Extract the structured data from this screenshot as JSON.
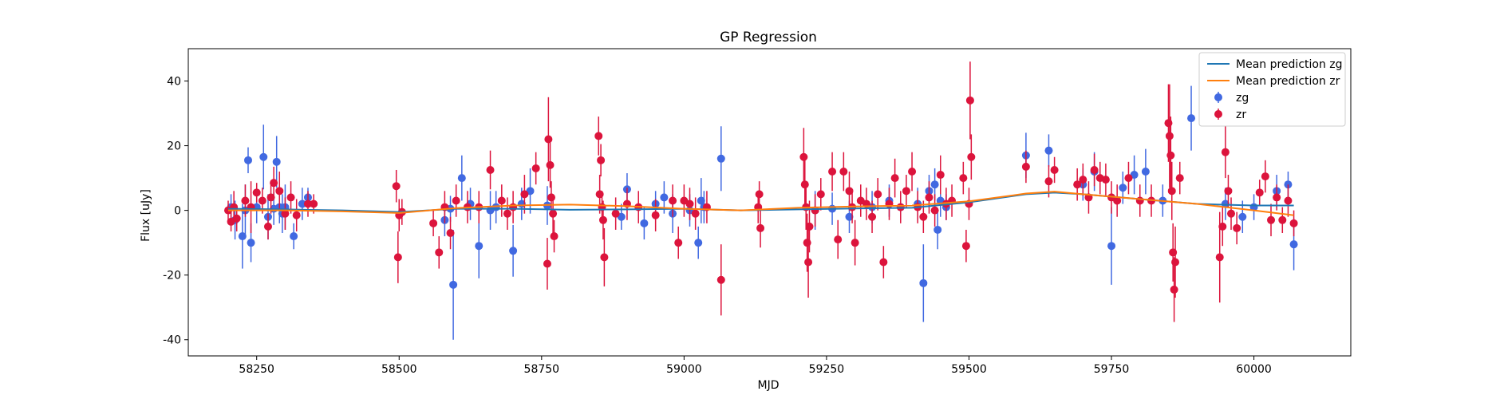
{
  "chart_data": {
    "type": "scatter",
    "title": "GP Regression",
    "xlabel": "MJD",
    "ylabel": "Flux [uJy]",
    "xlim": [
      58130,
      60170
    ],
    "ylim": [
      -45,
      50
    ],
    "xticks": [
      58250,
      58500,
      58750,
      59000,
      59250,
      59500,
      59750,
      60000
    ],
    "yticks": [
      -40,
      -20,
      0,
      20,
      40
    ],
    "legend_position": "top-right",
    "colors": {
      "zg_line": "#1f77b4",
      "zr_line": "#ff7f0e",
      "zg_points": "#4169e1",
      "zr_points": "#dc143c"
    },
    "series": [
      {
        "name": "Mean prediction zg",
        "kind": "line",
        "x": [
          58200,
          58300,
          58400,
          58500,
          58600,
          58700,
          58800,
          58900,
          59000,
          59100,
          59200,
          59300,
          59400,
          59500,
          59600,
          59650,
          59700,
          59800,
          59900,
          60000,
          60070
        ],
        "y": [
          0.5,
          0.3,
          0.0,
          -0.5,
          0.5,
          0.5,
          0.2,
          0.3,
          0.5,
          0.0,
          0.3,
          0.6,
          0.8,
          2.5,
          5.0,
          5.5,
          5.0,
          3.5,
          2.0,
          1.5,
          1.5
        ]
      },
      {
        "name": "Mean prediction zr",
        "kind": "line",
        "x": [
          58200,
          58300,
          58400,
          58500,
          58600,
          58700,
          58800,
          58900,
          59000,
          59100,
          59200,
          59300,
          59400,
          59500,
          59600,
          59650,
          59700,
          59800,
          59900,
          60000,
          60070
        ],
        "y": [
          0.0,
          0.0,
          -0.3,
          -0.8,
          0.7,
          1.5,
          1.8,
          1.3,
          0.5,
          0.0,
          0.8,
          1.2,
          1.5,
          2.8,
          5.2,
          5.8,
          5.0,
          3.5,
          2.0,
          0.0,
          -1.5
        ]
      },
      {
        "name": "zg",
        "kind": "errorbar",
        "x": [
          58205,
          58212,
          58225,
          58230,
          58235,
          58240,
          58250,
          58262,
          58270,
          58280,
          58285,
          58290,
          58295,
          58300,
          58315,
          58330,
          58340,
          58580,
          58590,
          58595,
          58610,
          58625,
          58640,
          58660,
          58670,
          58700,
          58715,
          58730,
          58760,
          58890,
          58900,
          58930,
          58950,
          58965,
          58980,
          59010,
          59025,
          59030,
          59035,
          59065,
          59230,
          59260,
          59290,
          59330,
          59360,
          59380,
          59410,
          59420,
          59430,
          59440,
          59445,
          59450,
          59460,
          59600,
          59640,
          59700,
          59720,
          59750,
          59770,
          59790,
          59810,
          59840,
          59890,
          59950,
          59980,
          60000,
          60040,
          60060,
          60070
        ],
        "y": [
          1,
          -3,
          -8,
          0,
          15.5,
          -10,
          1,
          16.5,
          -2,
          0.5,
          15,
          1,
          -1,
          1,
          -8,
          2,
          4,
          -3,
          0.5,
          -23,
          10,
          2,
          -11,
          0,
          1,
          -12.5,
          2,
          6,
          1.5,
          -2,
          6.5,
          -4,
          2,
          4,
          -1,
          0,
          -10,
          3,
          1,
          16,
          0,
          0.5,
          -2,
          1,
          3,
          1,
          2,
          -22.5,
          6,
          8,
          -6,
          3,
          1,
          17,
          18.5,
          8,
          12,
          -11,
          7,
          11,
          12,
          3,
          28.5,
          2,
          -2,
          1,
          6,
          8,
          -10.5
        ],
        "err": [
          4,
          6,
          10,
          8,
          4,
          6,
          5,
          10,
          7,
          5,
          8,
          5,
          6,
          7,
          4,
          5,
          3,
          5,
          4,
          17,
          7,
          5,
          10,
          6,
          5,
          8,
          5,
          7,
          6,
          4,
          5,
          5,
          4,
          5,
          6,
          5,
          5,
          7,
          5,
          10,
          6,
          5,
          5,
          5,
          5,
          4,
          5,
          12,
          5,
          5,
          6,
          5,
          4,
          7,
          5,
          5,
          6,
          12,
          5,
          6,
          7,
          5,
          10,
          5,
          5,
          4,
          5,
          4,
          8
        ]
      },
      {
        "name": "zr",
        "kind": "errorbar",
        "x": [
          58200,
          58205,
          58210,
          58215,
          58230,
          58240,
          58250,
          58260,
          58270,
          58275,
          58280,
          58290,
          58300,
          58310,
          58320,
          58340,
          58350,
          58495,
          58498,
          58500,
          58505,
          58560,
          58570,
          58580,
          58590,
          58600,
          58620,
          58640,
          58660,
          58680,
          58690,
          58700,
          58720,
          58740,
          58760,
          58762,
          58765,
          58767,
          58770,
          58772,
          58850,
          58852,
          58854,
          58856,
          58858,
          58860,
          58880,
          58900,
          58920,
          58950,
          58980,
          58990,
          59000,
          59010,
          59020,
          59040,
          59065,
          59130,
          59132,
          59134,
          59210,
          59212,
          59214,
          59216,
          59218,
          59220,
          59230,
          59240,
          59260,
          59270,
          59280,
          59290,
          59295,
          59300,
          59310,
          59320,
          59330,
          59340,
          59350,
          59360,
          59370,
          59380,
          59390,
          59400,
          59410,
          59420,
          59430,
          59440,
          59450,
          59460,
          59470,
          59490,
          59495,
          59500,
          59502,
          59504,
          59600,
          59640,
          59650,
          59690,
          59700,
          59710,
          59720,
          59730,
          59740,
          59750,
          59760,
          59780,
          59800,
          59820,
          59850,
          59852,
          59854,
          59856,
          59858,
          59860,
          59862,
          59870,
          59940,
          59945,
          59950,
          59955,
          59960,
          59970,
          60010,
          60020,
          60030,
          60040,
          60050,
          60060,
          60070
        ],
        "y": [
          0,
          -3.5,
          1,
          -2.5,
          3,
          1,
          5.5,
          3,
          -5,
          4,
          8.5,
          6,
          -1,
          4,
          -1.5,
          2,
          2,
          7.5,
          -14.5,
          -1.5,
          -0.5,
          -4,
          -13,
          1,
          -7,
          3,
          1,
          1,
          12.5,
          3,
          -1,
          1,
          5,
          13,
          -16.5,
          22,
          14,
          4,
          -1,
          -8,
          23,
          5,
          15.5,
          1,
          -3,
          -14.5,
          -1,
          2,
          1,
          -1.5,
          3,
          -10,
          3,
          2,
          -1,
          1,
          -21.5,
          1,
          5,
          -5.5,
          16.5,
          8,
          1,
          -10,
          -16,
          -5,
          0,
          5,
          12,
          -9,
          12,
          6,
          1,
          -10,
          3,
          2,
          -2,
          5,
          -16,
          2,
          10,
          1,
          6,
          12,
          1,
          -2,
          4,
          0,
          11,
          2,
          3,
          10,
          -11,
          2,
          34,
          16.5,
          13.5,
          9,
          12.5,
          8,
          9.5,
          4,
          12.5,
          10,
          9.5,
          4,
          3,
          10,
          3,
          3,
          27,
          23,
          17,
          6,
          -13,
          -24.5,
          -16,
          10,
          -14.5,
          -5,
          18,
          6,
          -1,
          -5.5,
          5.5,
          10.5,
          -3,
          4,
          -3,
          3,
          -4
        ],
        "err": [
          3,
          3,
          5,
          4,
          5,
          8,
          3,
          4,
          4,
          5,
          5,
          6,
          5,
          5,
          5,
          4,
          3,
          5,
          8,
          5,
          4,
          4,
          5,
          5,
          5,
          5,
          5,
          5,
          6,
          5,
          5,
          5,
          6,
          5,
          8,
          13,
          7,
          5,
          6,
          5,
          6,
          6,
          5,
          5,
          6,
          9,
          5,
          5,
          5,
          5,
          5,
          5,
          5,
          5,
          5,
          5,
          11,
          5,
          4,
          6,
          9,
          8,
          7,
          9,
          11,
          8,
          5,
          5,
          6,
          6,
          6,
          6,
          5,
          7,
          5,
          5,
          5,
          5,
          5,
          5,
          6,
          5,
          5,
          6,
          5,
          5,
          5,
          5,
          6,
          5,
          5,
          5,
          5,
          5,
          12,
          7,
          5,
          5,
          4,
          5,
          5,
          5,
          5,
          5,
          5,
          5,
          5,
          5,
          5,
          5,
          12,
          16,
          12,
          9,
          9,
          10,
          11,
          5,
          14,
          6,
          8,
          5,
          5,
          5,
          4,
          5,
          5,
          4,
          4,
          5,
          4
        ]
      }
    ]
  }
}
